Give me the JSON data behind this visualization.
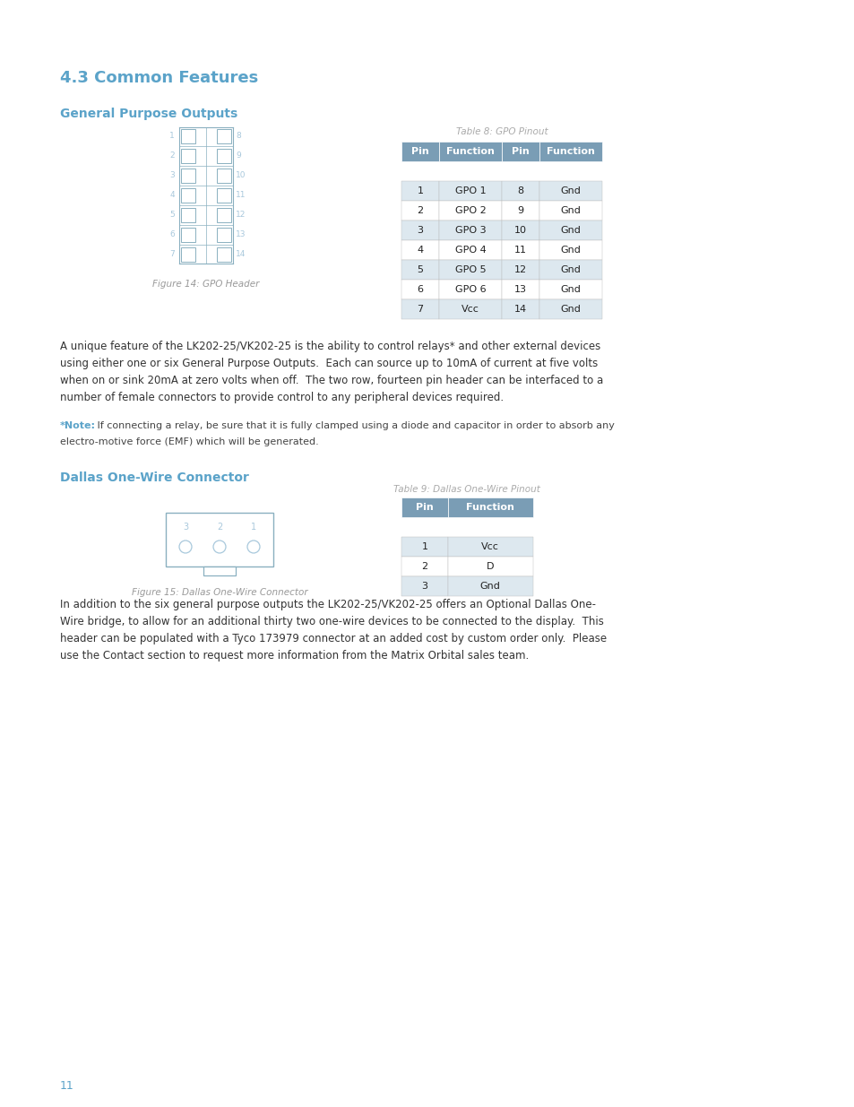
{
  "bg_color": "#ffffff",
  "heading_color": "#5ba3c9",
  "heading_text": "4.3 Common Features",
  "subheading1": "General Purpose Outputs",
  "subheading2": "Dallas One-Wire Connector",
  "table_header_bg": "#7a9db5",
  "table_header_text": "#ffffff",
  "table_row_alt_bg": "#dde8ef",
  "table_row_bg": "#ffffff",
  "gpo_table_title": "Table 8: GPO Pinout",
  "gpo_table_headers": [
    "Pin",
    "Function",
    "Pin",
    "Function"
  ],
  "gpo_table_rows": [
    [
      "1",
      "GPO 1",
      "8",
      "Gnd"
    ],
    [
      "2",
      "GPO 2",
      "9",
      "Gnd"
    ],
    [
      "3",
      "GPO 3",
      "10",
      "Gnd"
    ],
    [
      "4",
      "GPO 4",
      "11",
      "Gnd"
    ],
    [
      "5",
      "GPO 5",
      "12",
      "Gnd"
    ],
    [
      "6",
      "GPO 6",
      "13",
      "Gnd"
    ],
    [
      "7",
      "Vcc",
      "14",
      "Gnd"
    ]
  ],
  "dallas_table_title": "Table 9: Dallas One-Wire Pinout",
  "dallas_table_headers": [
    "Pin",
    "Function"
  ],
  "dallas_table_rows": [
    [
      "1",
      "Vcc"
    ],
    [
      "2",
      "D"
    ],
    [
      "3",
      "Gnd"
    ]
  ],
  "fig14_caption": "Figure 14: GPO Header",
  "fig15_caption": "Figure 15: Dallas One-Wire Connector",
  "body_text1_lines": [
    "A unique feature of the LK202-25/VK202-25 is the ability to control relays* and other external devices",
    "using either one or six General Purpose Outputs.  Each can source up to 10mA of current at five volts",
    "when on or sink 20mA at zero volts when off.  The two row, fourteen pin header can be interfaced to a",
    "number of female connectors to provide control to any peripheral devices required."
  ],
  "note_bold": "*Note:",
  "note_text1": " If connecting a relay, be sure that it is fully clamped using a diode and capacitor in order to absorb any",
  "note_text2": "electro-motive force (EMF) which will be generated.",
  "body_text2_lines": [
    "In addition to the six general purpose outputs the LK202-25/VK202-25 offers an Optional Dallas One-",
    "Wire bridge, to allow for an additional thirty two one-wire devices to be connected to the display.  This",
    "header can be populated with a Tyco 173979 connector at an added cost by custom order only.  Please",
    "use the Contact section to request more information from the Matrix Orbital sales team."
  ],
  "page_number": "11",
  "connector_color": "#a8c8dc",
  "connector_border": "#8ab0c0"
}
